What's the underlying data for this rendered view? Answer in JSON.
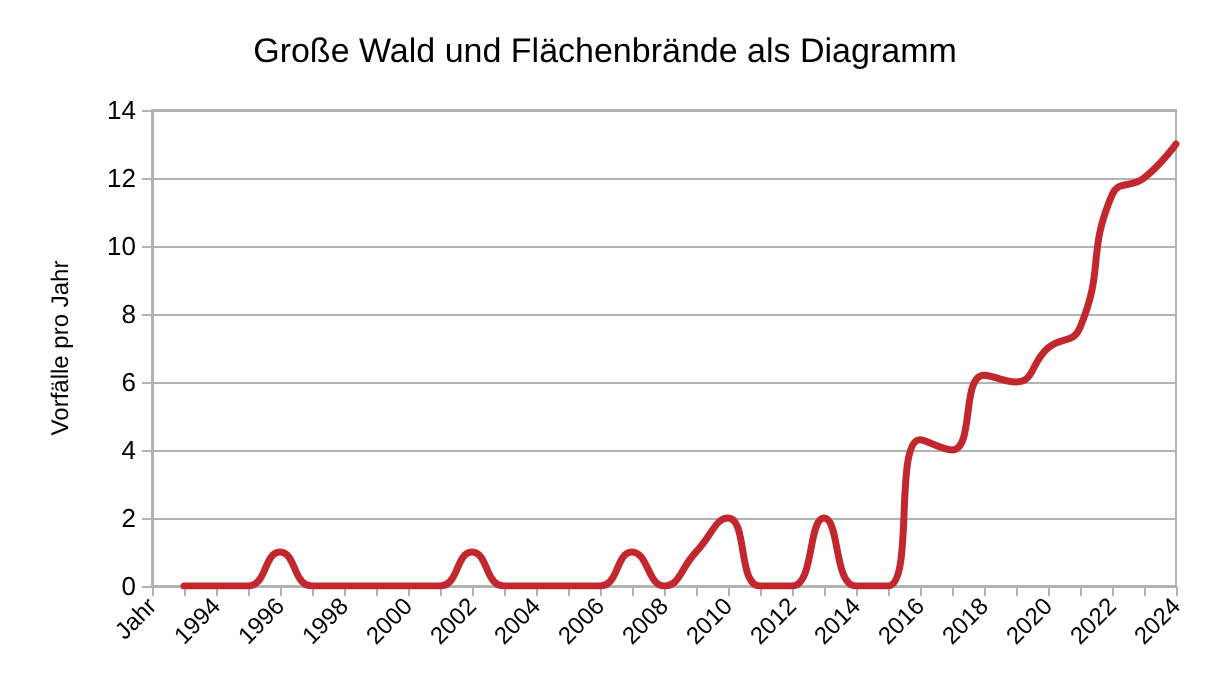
{
  "chart_data": {
    "type": "line",
    "title": "Große Wald und Flächenbrände als Diagramm",
    "ylabel": "Vorfälle pro Jahr",
    "categories": [
      "Jahr",
      null,
      "1994",
      null,
      "1996",
      null,
      "1998",
      null,
      "2000",
      null,
      "2002",
      null,
      "2004",
      null,
      "2006",
      null,
      "2008",
      null,
      "2010",
      null,
      "2012",
      null,
      "2014",
      null,
      "2016",
      null,
      "2018",
      null,
      "2020",
      null,
      "2022",
      null,
      "2024"
    ],
    "series": [
      {
        "color": "#c1272d",
        "values": [
          null,
          0,
          0,
          0,
          1,
          0,
          0,
          0,
          0,
          0,
          1,
          0,
          0,
          0,
          0,
          1,
          0,
          1,
          2,
          0,
          0,
          2,
          0,
          0,
          4.3,
          4,
          6.2,
          6,
          7,
          7.6,
          11.5,
          12,
          13
        ]
      }
    ],
    "ylim": [
      0,
      14
    ],
    "yticks": [
      0,
      2,
      4,
      6,
      8,
      10,
      12,
      14
    ],
    "grid": "y",
    "marker": "none",
    "line_style": "solid"
  }
}
